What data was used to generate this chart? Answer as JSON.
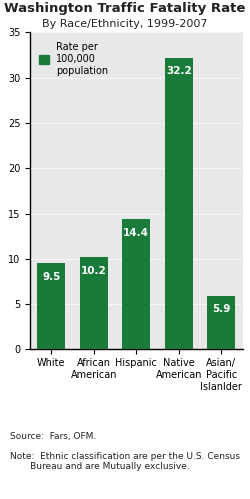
{
  "title": "Washington Traffic Fatality Rate",
  "subtitle": "By Race/Ethnicity, 1999-2007",
  "categories": [
    "White",
    "African\nAmerican",
    "Hispanic",
    "Native\nAmerican",
    "Asian/\nPacific\nIslanlder"
  ],
  "values": [
    9.5,
    10.2,
    14.4,
    32.2,
    5.9
  ],
  "bar_color": "#1a7a3a",
  "background_color": "#e8e8e8",
  "ylim": [
    0,
    35
  ],
  "yticks": [
    0,
    5,
    10,
    15,
    20,
    25,
    30,
    35
  ],
  "legend_label": "Rate per\n100,000\npopulation",
  "source_text": "Source:  Fars, OFM.",
  "note_text": "Note:  Ethnic classification are per the U.S. Census\n       Bureau and are Mutually exclusive.",
  "title_fontsize": 9.5,
  "subtitle_fontsize": 8,
  "bar_label_fontsize": 7.5,
  "axis_label_fontsize": 7,
  "footer_fontsize": 6.5
}
